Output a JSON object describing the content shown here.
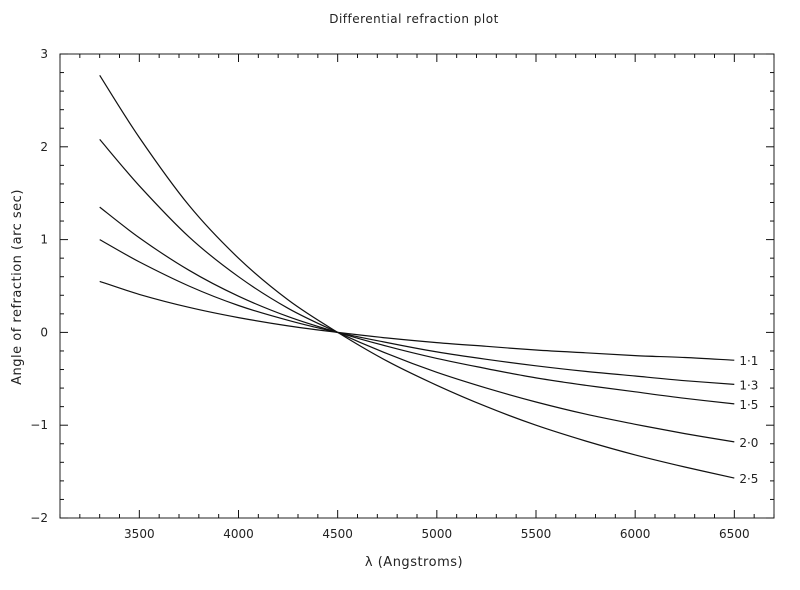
{
  "chart_data": {
    "type": "line",
    "title": "Differential refraction plot",
    "xlabel": "λ (Angstroms)",
    "ylabel": "Angle of refraction (arc sec)",
    "xlim": [
      3100,
      6700
    ],
    "ylim": [
      -2,
      3
    ],
    "xticks": [
      3500,
      4000,
      4500,
      5000,
      5500,
      6000,
      6500
    ],
    "yticks": [
      -2,
      -1,
      0,
      1,
      2,
      3
    ],
    "xtick_labels": [
      "3500",
      "4000",
      "4500",
      "5000",
      "5500",
      "6000",
      "6500"
    ],
    "ytick_labels": [
      "−2",
      "−1",
      "0",
      "1",
      "2",
      "3"
    ],
    "grid": false,
    "legend": "labels at right end of each line",
    "line_color": "#111111",
    "x": [
      3300,
      3500,
      3750,
      4000,
      4250,
      4500,
      4750,
      5000,
      5250,
      5500,
      5750,
      6000,
      6250,
      6500
    ],
    "series": [
      {
        "name": "1·1",
        "values": [
          0.55,
          0.41,
          0.27,
          0.16,
          0.07,
          0.0,
          -0.06,
          -0.11,
          -0.15,
          -0.19,
          -0.22,
          -0.25,
          -0.27,
          -0.3
        ]
      },
      {
        "name": "1·3",
        "values": [
          1.0,
          0.76,
          0.5,
          0.29,
          0.13,
          0.0,
          -0.11,
          -0.21,
          -0.29,
          -0.36,
          -0.42,
          -0.47,
          -0.52,
          -0.56
        ]
      },
      {
        "name": "1·5",
        "values": [
          1.35,
          1.02,
          0.67,
          0.39,
          0.17,
          0.0,
          -0.15,
          -0.28,
          -0.39,
          -0.49,
          -0.57,
          -0.64,
          -0.71,
          -0.77
        ]
      },
      {
        "name": "2·0",
        "values": [
          2.08,
          1.58,
          1.03,
          0.6,
          0.26,
          0.0,
          -0.23,
          -0.43,
          -0.6,
          -0.75,
          -0.88,
          -0.99,
          -1.09,
          -1.18
        ]
      },
      {
        "name": "2·5",
        "values": [
          2.77,
          2.1,
          1.37,
          0.8,
          0.35,
          0.0,
          -0.31,
          -0.57,
          -0.8,
          -1.0,
          -1.17,
          -1.32,
          -1.45,
          -1.57
        ]
      }
    ]
  }
}
